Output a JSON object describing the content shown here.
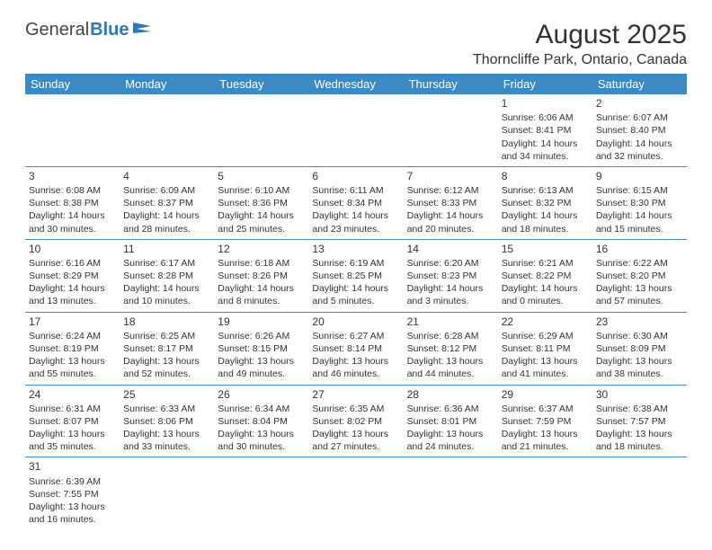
{
  "brand": {
    "part1": "General",
    "part2": "Blue"
  },
  "title": "August 2025",
  "location": "Thorncliffe Park, Ontario, Canada",
  "colors": {
    "header_bg": "#3b8ac4",
    "header_fg": "#ffffff",
    "rule": "#3b8ac4",
    "brand_blue": "#2e77b8"
  },
  "table": {
    "columns": [
      "Sunday",
      "Monday",
      "Tuesday",
      "Wednesday",
      "Thursday",
      "Friday",
      "Saturday"
    ],
    "weeks": [
      [
        null,
        null,
        null,
        null,
        null,
        {
          "n": "1",
          "sr": "Sunrise: 6:06 AM",
          "ss": "Sunset: 8:41 PM",
          "dl": "Daylight: 14 hours and 34 minutes."
        },
        {
          "n": "2",
          "sr": "Sunrise: 6:07 AM",
          "ss": "Sunset: 8:40 PM",
          "dl": "Daylight: 14 hours and 32 minutes."
        }
      ],
      [
        {
          "n": "3",
          "sr": "Sunrise: 6:08 AM",
          "ss": "Sunset: 8:38 PM",
          "dl": "Daylight: 14 hours and 30 minutes."
        },
        {
          "n": "4",
          "sr": "Sunrise: 6:09 AM",
          "ss": "Sunset: 8:37 PM",
          "dl": "Daylight: 14 hours and 28 minutes."
        },
        {
          "n": "5",
          "sr": "Sunrise: 6:10 AM",
          "ss": "Sunset: 8:36 PM",
          "dl": "Daylight: 14 hours and 25 minutes."
        },
        {
          "n": "6",
          "sr": "Sunrise: 6:11 AM",
          "ss": "Sunset: 8:34 PM",
          "dl": "Daylight: 14 hours and 23 minutes."
        },
        {
          "n": "7",
          "sr": "Sunrise: 6:12 AM",
          "ss": "Sunset: 8:33 PM",
          "dl": "Daylight: 14 hours and 20 minutes."
        },
        {
          "n": "8",
          "sr": "Sunrise: 6:13 AM",
          "ss": "Sunset: 8:32 PM",
          "dl": "Daylight: 14 hours and 18 minutes."
        },
        {
          "n": "9",
          "sr": "Sunrise: 6:15 AM",
          "ss": "Sunset: 8:30 PM",
          "dl": "Daylight: 14 hours and 15 minutes."
        }
      ],
      [
        {
          "n": "10",
          "sr": "Sunrise: 6:16 AM",
          "ss": "Sunset: 8:29 PM",
          "dl": "Daylight: 14 hours and 13 minutes."
        },
        {
          "n": "11",
          "sr": "Sunrise: 6:17 AM",
          "ss": "Sunset: 8:28 PM",
          "dl": "Daylight: 14 hours and 10 minutes."
        },
        {
          "n": "12",
          "sr": "Sunrise: 6:18 AM",
          "ss": "Sunset: 8:26 PM",
          "dl": "Daylight: 14 hours and 8 minutes."
        },
        {
          "n": "13",
          "sr": "Sunrise: 6:19 AM",
          "ss": "Sunset: 8:25 PM",
          "dl": "Daylight: 14 hours and 5 minutes."
        },
        {
          "n": "14",
          "sr": "Sunrise: 6:20 AM",
          "ss": "Sunset: 8:23 PM",
          "dl": "Daylight: 14 hours and 3 minutes."
        },
        {
          "n": "15",
          "sr": "Sunrise: 6:21 AM",
          "ss": "Sunset: 8:22 PM",
          "dl": "Daylight: 14 hours and 0 minutes."
        },
        {
          "n": "16",
          "sr": "Sunrise: 6:22 AM",
          "ss": "Sunset: 8:20 PM",
          "dl": "Daylight: 13 hours and 57 minutes."
        }
      ],
      [
        {
          "n": "17",
          "sr": "Sunrise: 6:24 AM",
          "ss": "Sunset: 8:19 PM",
          "dl": "Daylight: 13 hours and 55 minutes."
        },
        {
          "n": "18",
          "sr": "Sunrise: 6:25 AM",
          "ss": "Sunset: 8:17 PM",
          "dl": "Daylight: 13 hours and 52 minutes."
        },
        {
          "n": "19",
          "sr": "Sunrise: 6:26 AM",
          "ss": "Sunset: 8:15 PM",
          "dl": "Daylight: 13 hours and 49 minutes."
        },
        {
          "n": "20",
          "sr": "Sunrise: 6:27 AM",
          "ss": "Sunset: 8:14 PM",
          "dl": "Daylight: 13 hours and 46 minutes."
        },
        {
          "n": "21",
          "sr": "Sunrise: 6:28 AM",
          "ss": "Sunset: 8:12 PM",
          "dl": "Daylight: 13 hours and 44 minutes."
        },
        {
          "n": "22",
          "sr": "Sunrise: 6:29 AM",
          "ss": "Sunset: 8:11 PM",
          "dl": "Daylight: 13 hours and 41 minutes."
        },
        {
          "n": "23",
          "sr": "Sunrise: 6:30 AM",
          "ss": "Sunset: 8:09 PM",
          "dl": "Daylight: 13 hours and 38 minutes."
        }
      ],
      [
        {
          "n": "24",
          "sr": "Sunrise: 6:31 AM",
          "ss": "Sunset: 8:07 PM",
          "dl": "Daylight: 13 hours and 35 minutes."
        },
        {
          "n": "25",
          "sr": "Sunrise: 6:33 AM",
          "ss": "Sunset: 8:06 PM",
          "dl": "Daylight: 13 hours and 33 minutes."
        },
        {
          "n": "26",
          "sr": "Sunrise: 6:34 AM",
          "ss": "Sunset: 8:04 PM",
          "dl": "Daylight: 13 hours and 30 minutes."
        },
        {
          "n": "27",
          "sr": "Sunrise: 6:35 AM",
          "ss": "Sunset: 8:02 PM",
          "dl": "Daylight: 13 hours and 27 minutes."
        },
        {
          "n": "28",
          "sr": "Sunrise: 6:36 AM",
          "ss": "Sunset: 8:01 PM",
          "dl": "Daylight: 13 hours and 24 minutes."
        },
        {
          "n": "29",
          "sr": "Sunrise: 6:37 AM",
          "ss": "Sunset: 7:59 PM",
          "dl": "Daylight: 13 hours and 21 minutes."
        },
        {
          "n": "30",
          "sr": "Sunrise: 6:38 AM",
          "ss": "Sunset: 7:57 PM",
          "dl": "Daylight: 13 hours and 18 minutes."
        }
      ],
      [
        {
          "n": "31",
          "sr": "Sunrise: 6:39 AM",
          "ss": "Sunset: 7:55 PM",
          "dl": "Daylight: 13 hours and 16 minutes."
        },
        null,
        null,
        null,
        null,
        null,
        null
      ]
    ]
  }
}
